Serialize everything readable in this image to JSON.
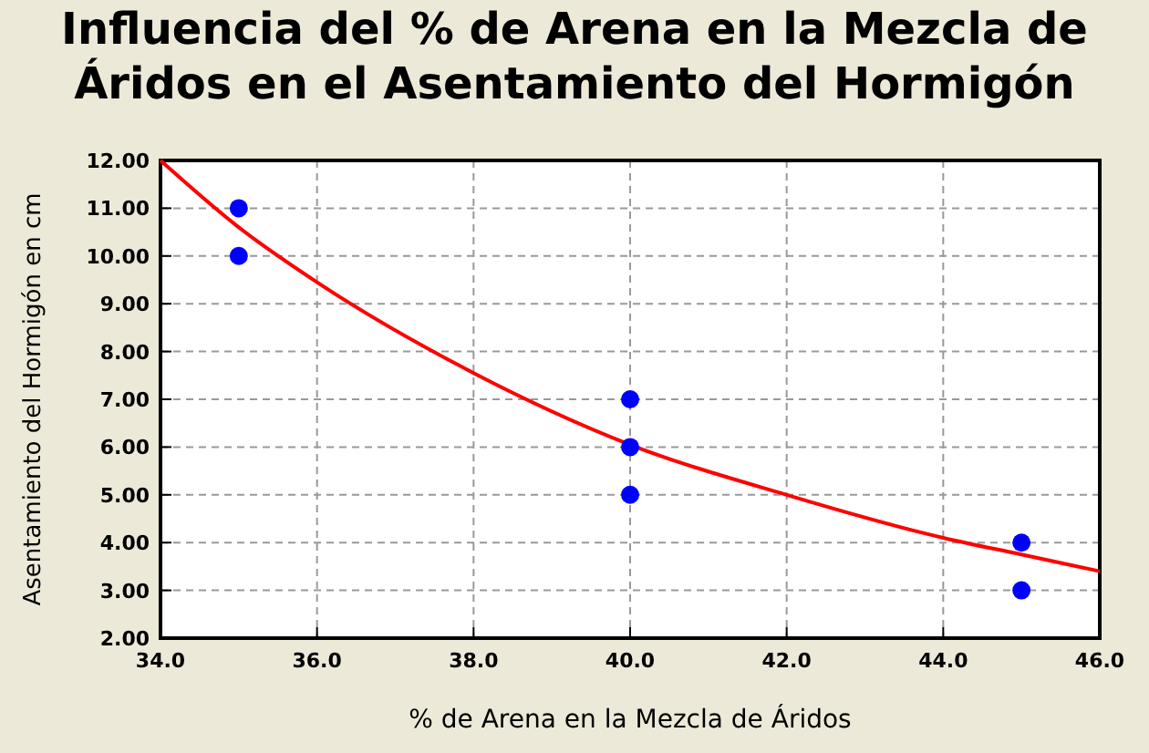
{
  "chart_data": {
    "type": "scatter",
    "title": "Influencia del % de Arena en la Mezcla de Áridos en el Asentamiento del Hormigón",
    "xlabel": "% de Arena en la Mezcla de Áridos",
    "ylabel": "Asentamiento del Hormigón en cm",
    "xlim": [
      34,
      46
    ],
    "ylim": [
      2,
      12
    ],
    "xticks": [
      {
        "value": 34,
        "label": "34.0"
      },
      {
        "value": 36,
        "label": "36.0"
      },
      {
        "value": 38,
        "label": "38.0"
      },
      {
        "value": 40,
        "label": "40.0"
      },
      {
        "value": 42,
        "label": "42.0"
      },
      {
        "value": 44,
        "label": "44.0"
      },
      {
        "value": 46,
        "label": "46.0"
      }
    ],
    "yticks": [
      {
        "value": 2,
        "label": "2.00"
      },
      {
        "value": 3,
        "label": "3.00"
      },
      {
        "value": 4,
        "label": "4.00"
      },
      {
        "value": 5,
        "label": "5.00"
      },
      {
        "value": 6,
        "label": "6.00"
      },
      {
        "value": 7,
        "label": "7.00"
      },
      {
        "value": 8,
        "label": "8.00"
      },
      {
        "value": 9,
        "label": "9.00"
      },
      {
        "value": 10,
        "label": "10.00"
      },
      {
        "value": 11,
        "label": "11.00"
      },
      {
        "value": 12,
        "label": "12.00"
      }
    ],
    "grid": true,
    "series": [
      {
        "type": "line",
        "color": "#ff0000",
        "marker": "none",
        "x": [
          34,
          35,
          36,
          38,
          40,
          42,
          44,
          45,
          46
        ],
        "values": [
          12,
          10.6,
          9.45,
          7.55,
          6.05,
          5.0,
          4.1,
          3.75,
          3.4
        ]
      },
      {
        "color": "#0000ff",
        "marker": "circle",
        "x": [
          35,
          35,
          40,
          40,
          40,
          45,
          45
        ],
        "values": [
          11,
          10,
          7,
          6,
          5,
          4,
          3
        ]
      }
    ]
  }
}
